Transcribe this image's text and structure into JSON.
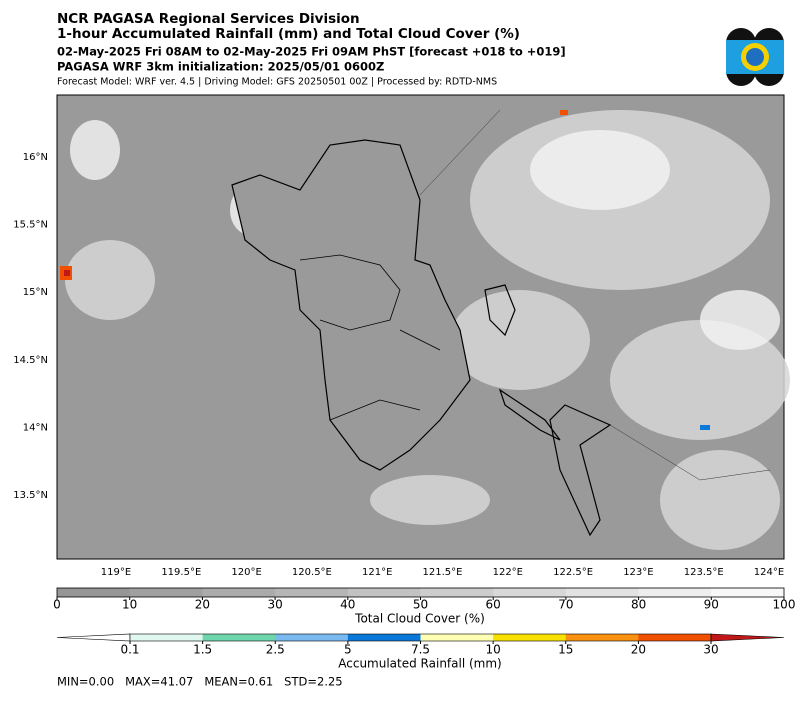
{
  "header": {
    "title": "NCR PAGASA Regional Services Division",
    "subtitle": "1-hour Accumulated Rainfall (mm) and Total Cloud Cover (%)",
    "valid_time": "02-May-2025 Fri 08AM to 02-May-2025 Fri 09AM PhST [forecast +018 to +019]",
    "initialization": "PAGASA WRF 3km initialization: 2025/05/01 0600Z",
    "model_info": "Forecast Model: WRF ver. 4.5 | Driving Model: GFS 20250501 00Z | Processed by: RDTD-NMS"
  },
  "map": {
    "lon_labels": [
      "119°E",
      "119.5°E",
      "120°E",
      "120.5°E",
      "121°E",
      "121.5°E",
      "122°E",
      "122.5°E",
      "123°E",
      "123.5°E",
      "124°E"
    ],
    "lat_labels": [
      "16°N",
      "15.5°N",
      "15°N",
      "14.5°N",
      "14°N",
      "13.5°N"
    ]
  },
  "cloud_colorbar": {
    "label": "Total Cloud Cover (%)",
    "ticks": [
      "0",
      "10",
      "20",
      "30",
      "40",
      "50",
      "60",
      "70",
      "80",
      "90",
      "100"
    ],
    "colors": [
      "#969696",
      "#a0a0a0",
      "#ababab",
      "#b6b6b6",
      "#c2c2c2",
      "#cdcdcd",
      "#d8d8d8",
      "#e3e3e3",
      "#eeeeee",
      "#f8f8f8"
    ]
  },
  "rain_colorbar": {
    "label": "Accumulated Rainfall (mm)",
    "ticks": [
      "0.1",
      "1.5",
      "2.5",
      "5",
      "7.5",
      "10",
      "15",
      "20",
      "30"
    ],
    "colors": [
      "#ffffff",
      "#e0f8f0",
      "#6ed6aa",
      "#7ab8f0",
      "#0a78d8",
      "#ffffb4",
      "#f8e000",
      "#f89010",
      "#f05000",
      "#c01818"
    ]
  },
  "stats": "MIN=0.00   MAX=41.07   MEAN=0.61   STD=2.25"
}
